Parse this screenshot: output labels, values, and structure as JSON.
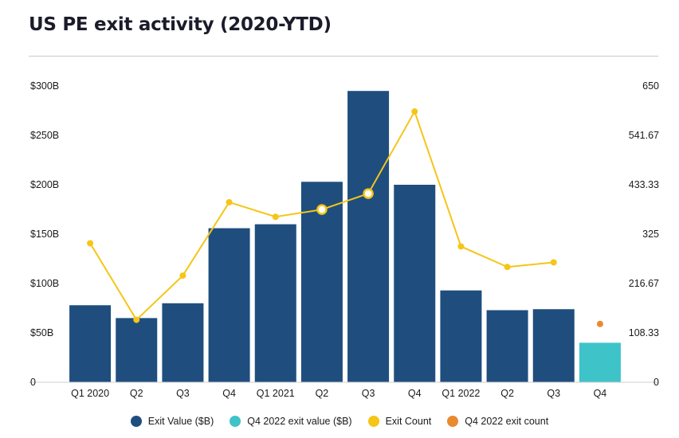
{
  "page": {
    "title": "US PE exit activity (2020-YTD)"
  },
  "colors": {
    "exit_value": "#1f4e7e",
    "q4_2022_exit_value": "#3ec3c9",
    "exit_count": "#f5c518",
    "q4_2022_exit_count": "#e88a2e",
    "axis_line": "#cfcfcf"
  },
  "legend": [
    {
      "label": "Exit Value ($B)",
      "color": "#1f4e7e"
    },
    {
      "label": "Q4 2022 exit value ($B)",
      "color": "#3ec3c9"
    },
    {
      "label": "Exit Count",
      "color": "#f5c518"
    },
    {
      "label": "Q4 2022 exit count",
      "color": "#e88a2e"
    }
  ],
  "chart_data": {
    "type": "bar",
    "title": "US PE exit activity (2020-YTD)",
    "categories": [
      "Q1 2020",
      "Q2",
      "Q3",
      "Q4",
      "Q1 2021",
      "Q2",
      "Q3",
      "Q4",
      "Q1 2022",
      "Q2",
      "Q3",
      "Q4"
    ],
    "y_left": {
      "ylim": [
        0,
        300
      ],
      "tick_labels": [
        "0",
        "$50B",
        "$100B",
        "$150B",
        "$200B",
        "$250B",
        "$300B"
      ],
      "tick_values": [
        0,
        50,
        100,
        150,
        200,
        250,
        300
      ]
    },
    "y_right": {
      "ylim": [
        0,
        650
      ],
      "tick_labels": [
        "0",
        "108.33",
        "216.67",
        "325",
        "433.33",
        "541.67",
        "650"
      ],
      "tick_values": [
        0,
        108.33,
        216.67,
        325,
        433.33,
        541.67,
        650
      ]
    },
    "series": [
      {
        "name": "Exit Value ($B)",
        "type": "bar",
        "axis": "left",
        "values": [
          78,
          65,
          80,
          156,
          160,
          203,
          295,
          200,
          93,
          73,
          74,
          null
        ]
      },
      {
        "name": "Q4 2022 exit value ($B)",
        "type": "bar",
        "axis": "left",
        "values": [
          null,
          null,
          null,
          null,
          null,
          null,
          null,
          null,
          null,
          null,
          null,
          40
        ]
      },
      {
        "name": "Exit Count",
        "type": "line",
        "axis": "right",
        "values": [
          305,
          137,
          234,
          395,
          363,
          379,
          414,
          594,
          298,
          253,
          263,
          null
        ],
        "highlighted_indices": [
          5,
          6
        ]
      },
      {
        "name": "Q4 2022 exit count",
        "type": "scatter",
        "axis": "right",
        "values": [
          null,
          null,
          null,
          null,
          null,
          null,
          null,
          null,
          null,
          null,
          null,
          128
        ]
      }
    ]
  }
}
